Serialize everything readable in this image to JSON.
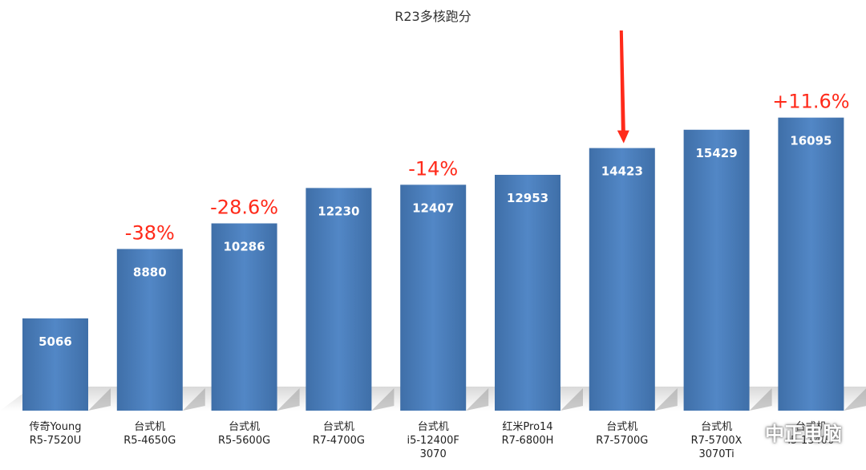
{
  "chart_data": {
    "type": "bar",
    "title": "R23多核跑分",
    "xlabel": "",
    "ylabel": "",
    "ylim": [
      0,
      20000
    ],
    "grid": false,
    "bar_color": "#4a7ebb",
    "annotation_color": "#ff2a1a",
    "categories": [
      [
        "传奇Young",
        "R5-7520U"
      ],
      [
        "台式机",
        "R5-4650G"
      ],
      [
        "台式机",
        "R5-5600G"
      ],
      [
        "台式机",
        "R7-4700G"
      ],
      [
        "台式机",
        "i5-12400F",
        "3070"
      ],
      [
        "红米Pro14",
        "R7-6800H"
      ],
      [
        "台式机",
        "R7-5700G"
      ],
      [
        "台式机",
        "R7-5700X",
        "3070Ti"
      ],
      [
        "台式机",
        "i5-13400"
      ]
    ],
    "values": [
      5066,
      8880,
      10286,
      12230,
      12407,
      12953,
      14423,
      15429,
      16095
    ],
    "annotations": [
      {
        "index": 1,
        "text": "-38%"
      },
      {
        "index": 2,
        "text": "-28.6%"
      },
      {
        "index": 4,
        "text": "-14%"
      },
      {
        "index": 8,
        "text": "+11.6%"
      }
    ],
    "highlight_arrow_index": 6
  },
  "watermark": {
    "text": "中正电脑",
    "icon": "wechat-icon"
  }
}
